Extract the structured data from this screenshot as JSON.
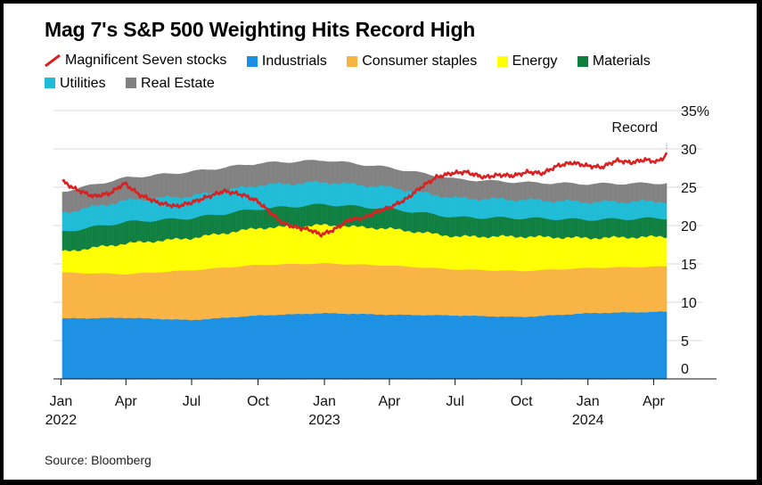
{
  "chart_data": {
    "type": "area",
    "title": "Mag 7's S&P 500 Weighting Hits Record High",
    "source": "Source: Bloomberg",
    "x_range": [
      "2022-01-03",
      "2024-04-19"
    ],
    "ylim": [
      0,
      35
    ],
    "y_ticks": [
      {
        "value": 0,
        "label": "0"
      },
      {
        "value": 5,
        "label": "5"
      },
      {
        "value": 10,
        "label": "10"
      },
      {
        "value": 15,
        "label": "15"
      },
      {
        "value": 20,
        "label": "20"
      },
      {
        "value": 25,
        "label": "25"
      },
      {
        "value": 30,
        "label": "30"
      },
      {
        "value": 35,
        "label": "35%"
      }
    ],
    "x_ticks": [
      {
        "date": "2022-01-01",
        "label": "Jan",
        "year": "2022"
      },
      {
        "date": "2022-04-01",
        "label": "Apr",
        "year": ""
      },
      {
        "date": "2022-07-01",
        "label": "Jul",
        "year": ""
      },
      {
        "date": "2022-10-01",
        "label": "Oct",
        "year": ""
      },
      {
        "date": "2023-01-01",
        "label": "Jan",
        "year": "2023"
      },
      {
        "date": "2023-04-01",
        "label": "Apr",
        "year": ""
      },
      {
        "date": "2023-07-01",
        "label": "Jul",
        "year": ""
      },
      {
        "date": "2023-10-01",
        "label": "Oct",
        "year": ""
      },
      {
        "date": "2024-01-01",
        "label": "Jan",
        "year": "2024"
      },
      {
        "date": "2024-04-01",
        "label": "Apr",
        "year": ""
      }
    ],
    "grid": true,
    "legend_position": "top",
    "annotation": {
      "text": "Record",
      "date": "2024-04-19",
      "value": 29.6
    },
    "stacked_series": [
      {
        "name": "Industrials",
        "color": "#1a8fe3",
        "points": [
          [
            "2022-01-03",
            7.9
          ],
          [
            "2022-04-01",
            8.0
          ],
          [
            "2022-07-01",
            7.7
          ],
          [
            "2022-10-01",
            8.3
          ],
          [
            "2023-01-02",
            8.6
          ],
          [
            "2023-04-03",
            8.4
          ],
          [
            "2023-07-03",
            8.3
          ],
          [
            "2023-10-02",
            8.1
          ],
          [
            "2024-01-02",
            8.6
          ],
          [
            "2024-04-19",
            8.8
          ]
        ]
      },
      {
        "name": "Consumer staples",
        "color": "#f9b342",
        "points": [
          [
            "2022-01-03",
            6.0
          ],
          [
            "2022-04-01",
            5.7
          ],
          [
            "2022-07-01",
            6.5
          ],
          [
            "2022-10-01",
            6.6
          ],
          [
            "2023-01-02",
            6.5
          ],
          [
            "2023-04-03",
            6.4
          ],
          [
            "2023-07-03",
            6.0
          ],
          [
            "2023-10-02",
            6.0
          ],
          [
            "2024-01-02",
            5.9
          ],
          [
            "2024-04-19",
            5.9
          ]
        ]
      },
      {
        "name": "Energy",
        "color": "#ffff00",
        "points": [
          [
            "2022-01-03",
            2.7
          ],
          [
            "2022-04-01",
            4.0
          ],
          [
            "2022-07-01",
            4.2
          ],
          [
            "2022-10-01",
            4.8
          ],
          [
            "2023-01-02",
            5.0
          ],
          [
            "2023-04-03",
            4.8
          ],
          [
            "2023-07-03",
            4.3
          ],
          [
            "2023-10-02",
            4.5
          ],
          [
            "2024-01-02",
            3.9
          ],
          [
            "2024-04-19",
            3.9
          ]
        ]
      },
      {
        "name": "Materials",
        "color": "#0c7f3f",
        "points": [
          [
            "2022-01-03",
            2.6
          ],
          [
            "2022-04-01",
            2.8
          ],
          [
            "2022-07-01",
            2.6
          ],
          [
            "2022-10-01",
            2.5
          ],
          [
            "2023-01-02",
            2.7
          ],
          [
            "2023-04-03",
            2.6
          ],
          [
            "2023-07-03",
            2.5
          ],
          [
            "2023-10-02",
            2.4
          ],
          [
            "2024-01-02",
            2.4
          ],
          [
            "2024-04-19",
            2.4
          ]
        ]
      },
      {
        "name": "Utilities",
        "color": "#1ebbd7",
        "points": [
          [
            "2022-01-03",
            2.5
          ],
          [
            "2022-04-01",
            2.8
          ],
          [
            "2022-07-01",
            2.9
          ],
          [
            "2022-10-01",
            3.1
          ],
          [
            "2023-01-02",
            2.9
          ],
          [
            "2023-04-03",
            2.8
          ],
          [
            "2023-07-03",
            2.5
          ],
          [
            "2023-10-02",
            2.4
          ],
          [
            "2024-01-02",
            2.3
          ],
          [
            "2024-04-19",
            2.2
          ]
        ]
      },
      {
        "name": "Real Estate",
        "color": "#808080",
        "points": [
          [
            "2022-01-03",
            2.7
          ],
          [
            "2022-04-01",
            2.9
          ],
          [
            "2022-07-01",
            3.1
          ],
          [
            "2022-10-01",
            2.8
          ],
          [
            "2023-01-02",
            2.8
          ],
          [
            "2023-04-03",
            2.5
          ],
          [
            "2023-07-03",
            2.4
          ],
          [
            "2023-10-02",
            2.2
          ],
          [
            "2024-01-02",
            2.3
          ],
          [
            "2024-04-19",
            2.3
          ]
        ]
      }
    ],
    "line_series": {
      "name": "Magnificent Seven stocks",
      "color": "#d92121",
      "points": [
        [
          "2022-01-03",
          25.8
        ],
        [
          "2022-01-20",
          24.8
        ],
        [
          "2022-02-15",
          23.8
        ],
        [
          "2022-03-10",
          24.2
        ],
        [
          "2022-03-30",
          25.5
        ],
        [
          "2022-04-20",
          24.0
        ],
        [
          "2022-05-15",
          23.0
        ],
        [
          "2022-06-10",
          22.5
        ],
        [
          "2022-07-01",
          23.0
        ],
        [
          "2022-07-25",
          23.8
        ],
        [
          "2022-08-15",
          24.5
        ],
        [
          "2022-09-10",
          24.0
        ],
        [
          "2022-09-30",
          23.2
        ],
        [
          "2022-10-15",
          22.0
        ],
        [
          "2022-11-01",
          20.5
        ],
        [
          "2022-11-20",
          19.8
        ],
        [
          "2022-12-10",
          19.5
        ],
        [
          "2022-12-28",
          18.8
        ],
        [
          "2023-01-15",
          19.5
        ],
        [
          "2023-02-05",
          20.8
        ],
        [
          "2023-02-25",
          21.0
        ],
        [
          "2023-03-15",
          21.8
        ],
        [
          "2023-04-05",
          22.5
        ],
        [
          "2023-04-25",
          23.5
        ],
        [
          "2023-05-15",
          25.0
        ],
        [
          "2023-06-05",
          26.3
        ],
        [
          "2023-06-25",
          26.8
        ],
        [
          "2023-07-15",
          27.0
        ],
        [
          "2023-08-10",
          26.3
        ],
        [
          "2023-08-30",
          26.6
        ],
        [
          "2023-09-20",
          26.5
        ],
        [
          "2023-10-10",
          27.0
        ],
        [
          "2023-10-30",
          26.8
        ],
        [
          "2023-11-20",
          27.8
        ],
        [
          "2023-12-10",
          28.2
        ],
        [
          "2023-12-31",
          27.8
        ],
        [
          "2024-01-20",
          27.6
        ],
        [
          "2024-02-10",
          28.5
        ],
        [
          "2024-03-01",
          28.2
        ],
        [
          "2024-03-20",
          28.6
        ],
        [
          "2024-04-05",
          28.3
        ],
        [
          "2024-04-17",
          29.0
        ],
        [
          "2024-04-19",
          29.6
        ]
      ]
    }
  }
}
